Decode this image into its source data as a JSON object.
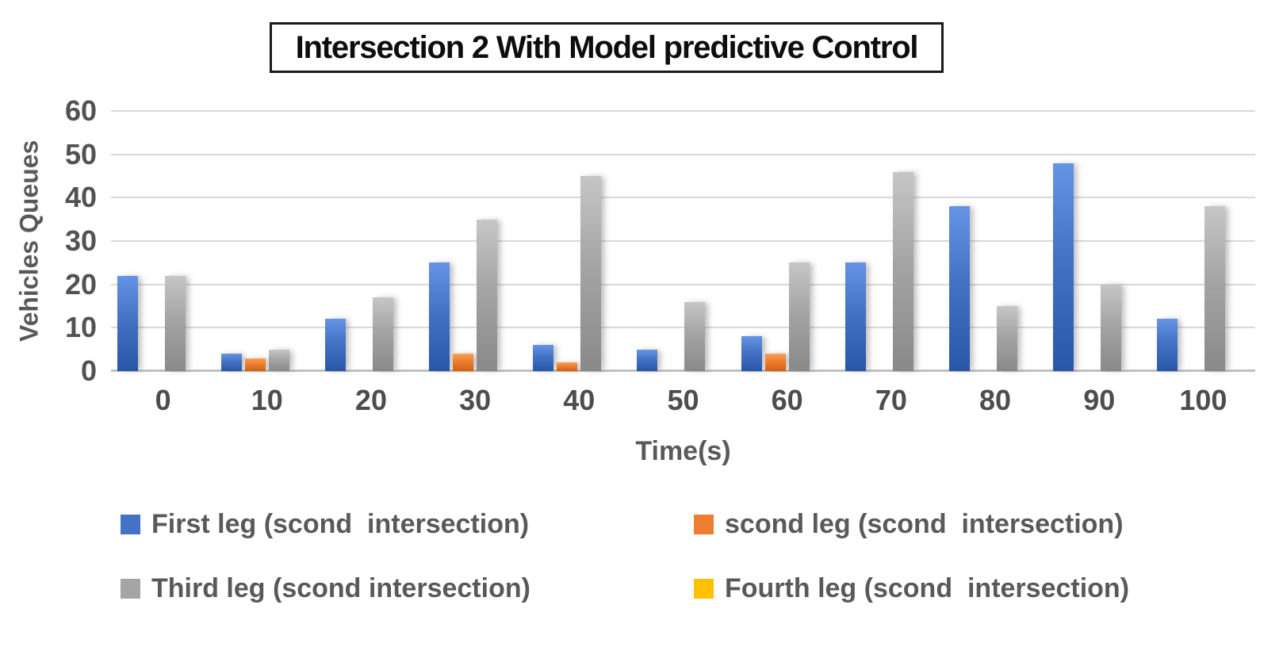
{
  "title": "Intersection 2 With Model predictive Control",
  "y_axis": {
    "title": "Vehicles Queues",
    "ticks": [
      "0",
      "10",
      "20",
      "30",
      "40",
      "50",
      "60"
    ]
  },
  "x_axis": {
    "title": "Time(s)",
    "ticks": [
      "0",
      "10",
      "20",
      "30",
      "40",
      "50",
      "60",
      "70",
      "80",
      "90",
      "100"
    ]
  },
  "colors": {
    "series_blue": "#4472C4",
    "series_orange": "#ED7D31",
    "series_gray": "#A5A5A5",
    "series_yellow": "#FFC000",
    "gridline": "#D9D9D9",
    "axis_line": "#C0C0C0",
    "axis_text": "#595959",
    "tick_text": "#4d4d4d",
    "title_text": "#0d0d0d"
  },
  "chart_data": {
    "type": "bar",
    "title": "Intersection 2 With Model predictive Control",
    "xlabel": "Time(s)",
    "ylabel": "Vehicles Queues",
    "ylim": [
      0,
      60
    ],
    "grid": true,
    "legend_position": "bottom",
    "categories": [
      0,
      10,
      20,
      30,
      40,
      50,
      60,
      70,
      80,
      90,
      100
    ],
    "series": [
      {
        "name": "First leg (scond  intersection)",
        "color": "#4472C4",
        "values": [
          22,
          4,
          12,
          25,
          6,
          5,
          8,
          25,
          38,
          48,
          12
        ]
      },
      {
        "name": "scond leg (scond  intersection)",
        "color": "#ED7D31",
        "values": [
          0,
          3,
          0,
          4,
          2,
          0,
          4,
          0,
          0,
          0,
          0
        ]
      },
      {
        "name": "Third leg (scond intersection)",
        "color": "#A5A5A5",
        "values": [
          22,
          5,
          17,
          35,
          45,
          16,
          25,
          46,
          15,
          20,
          38
        ]
      },
      {
        "name": "Fourth leg (scond  intersection)",
        "color": "#FFC000",
        "values": [
          0,
          0,
          0,
          0,
          0,
          0,
          0,
          0,
          0,
          0,
          0
        ]
      }
    ]
  }
}
